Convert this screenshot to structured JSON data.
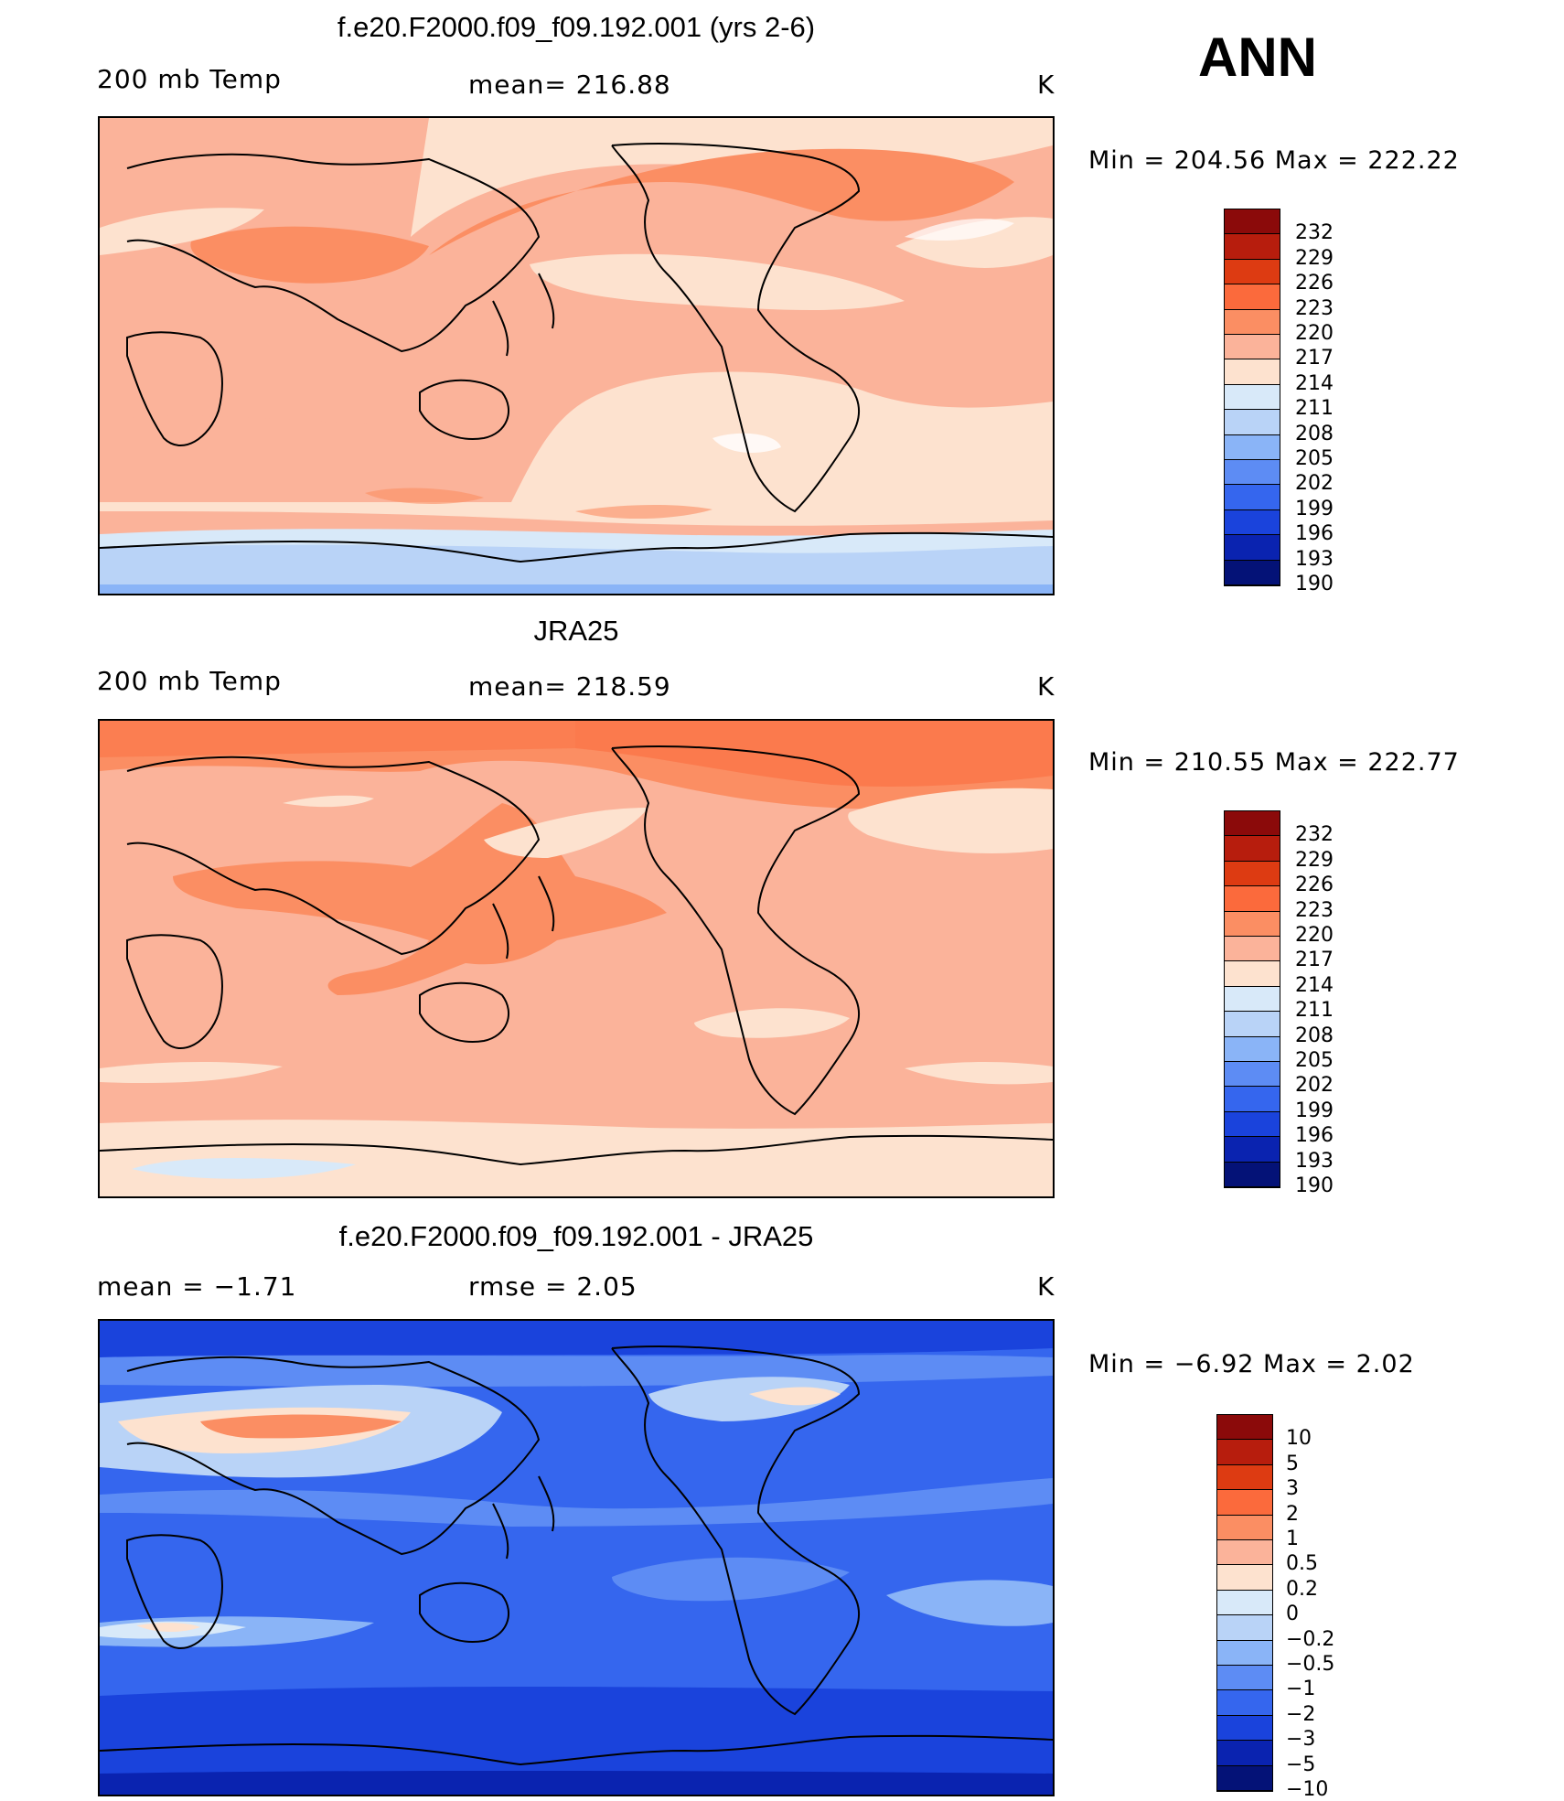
{
  "season": "ANN",
  "palette": {
    "temp": [
      "#8b0a0a",
      "#b71d0d",
      "#dd3b12",
      "#fb6a3c",
      "#fb8e63",
      "#fbb39a",
      "#fde2cf",
      "#d8e9f9",
      "#b9d3f7",
      "#8ab4f7",
      "#5d8cf4",
      "#3566ee",
      "#1a43dc",
      "#0a23b0",
      "#041277"
    ],
    "diff": [
      "#8b0a0a",
      "#b71d0d",
      "#dd3b12",
      "#fb6a3c",
      "#fb8e63",
      "#fbb39a",
      "#fde2cf",
      "#d8e9f9",
      "#b9d3f7",
      "#8ab4f7",
      "#5d8cf4",
      "#3566ee",
      "#1a43dc",
      "#0a23b0",
      "#041277"
    ]
  },
  "chart_data": [
    {
      "type": "heatmap",
      "title": "f.e20.F2000.f09_f09.192.001 (yrs 2-6)",
      "variable": "200 mb Temp",
      "mean_text": "mean= 216.88",
      "units": "K",
      "min_max_text": "Min = 204.56 Max = 222.22",
      "min": 204.56,
      "max": 222.22,
      "colorbar_labels": [
        "232",
        "229",
        "226",
        "223",
        "220",
        "217",
        "214",
        "211",
        "208",
        "205",
        "202",
        "199",
        "196",
        "193",
        "190"
      ]
    },
    {
      "type": "heatmap",
      "title": "JRA25",
      "variable": "200 mb Temp",
      "mean_text": "mean= 218.59",
      "units": "K",
      "min_max_text": "Min = 210.55 Max = 222.77",
      "min": 210.55,
      "max": 222.77,
      "colorbar_labels": [
        "232",
        "229",
        "226",
        "223",
        "220",
        "217",
        "214",
        "211",
        "208",
        "205",
        "202",
        "199",
        "196",
        "193",
        "190"
      ]
    },
    {
      "type": "heatmap",
      "title": "f.e20.F2000.f09_f09.192.001 - JRA25",
      "mean_text": "mean =   −1.71",
      "rmse_text": "rmse =    2.05",
      "units": "K",
      "min_max_text": "Min =   −6.92 Max =    2.02",
      "min": -6.92,
      "max": 2.02,
      "colorbar_labels": [
        "10",
        "5",
        "3",
        "2",
        "1",
        "0.5",
        "0.2",
        "0",
        "−0.2",
        "−0.5",
        "−1",
        "−2",
        "−3",
        "−5",
        "−10"
      ]
    }
  ]
}
